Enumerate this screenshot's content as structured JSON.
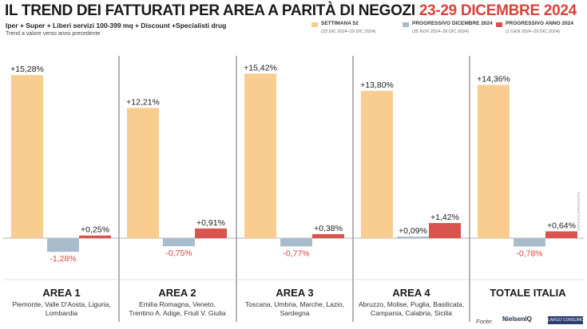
{
  "header": {
    "title_main": "IL TREND DEI FATTURATI PER AREA A PARITÀ DI NEGOZI",
    "title_dates": "23-29 DICEMBRE 2024",
    "subtitle": "Iper + Super + Liberi servizi 100-399 mq + Discount +Specialisti drug",
    "note": "Trend a valore verso anno precedente"
  },
  "legend": [
    {
      "label": "SETTIMANA 52",
      "sub": "(23 DIC 2024–29 DIC 2024)",
      "color": "#f8cd8f"
    },
    {
      "label": "PROGRESSIVO DICEMBRE 2024",
      "sub": "(25 NOV 2024–29 DIC 2024)",
      "color": "#a9bccb"
    },
    {
      "label": "PROGRESSIVO ANNO 2024",
      "sub": "(1 GEN 2024–29 DIC 2024)",
      "color": "#d9534f"
    }
  ],
  "credit": "GRAFICO IMPAGINATO",
  "source": {
    "label": "Fonte:",
    "logo": "NielsenIQ",
    "logo2": "LARGO CONSUMO"
  },
  "chart_data": {
    "type": "bar",
    "categories": [
      "AREA 1",
      "AREA 2",
      "AREA 3",
      "AREA 4",
      "TOTALE ITALIA"
    ],
    "category_regions": [
      [
        "Piemonte, Valle D'Aosta, Liguria,",
        "Lombardia"
      ],
      [
        "Emilia Romagna, Veneto,",
        "Trentino A. Adige, Friuli V. Giulia"
      ],
      [
        "Toscana, Umbria, Marche, Lazio,",
        "Sardegna"
      ],
      [
        "Abruzzo, Molise, Puglia, Basilicata,",
        "Campania, Calabria, Sicilia"
      ],
      []
    ],
    "series": [
      {
        "name": "SETTIMANA 52",
        "values": [
          15.28,
          12.21,
          15.42,
          13.8,
          14.36
        ],
        "labels": [
          "+15,28%",
          "+12,21%",
          "+15,42%",
          "+13,80%",
          "+14,36%"
        ],
        "color": "#f8cd8f"
      },
      {
        "name": "PROGRESSIVO DICEMBRE 2024",
        "values": [
          -1.28,
          -0.75,
          -0.77,
          0.09,
          -0.78
        ],
        "labels": [
          "-1,28%",
          "-0,75%",
          "-0,77%",
          "+0,09%",
          "-0,78%"
        ],
        "color": "#a9bccb"
      },
      {
        "name": "PROGRESSIVO ANNO 2024",
        "values": [
          0.25,
          0.91,
          0.38,
          1.42,
          0.64
        ],
        "labels": [
          "+0,25%",
          "+0,91%",
          "+0,38%",
          "+1,42%",
          "+0,64%"
        ],
        "color": "#d9534f"
      }
    ],
    "positive_label_color": "#1a1a1a",
    "negative_label_color": "#d9423a",
    "ylim": [
      -1.5,
      16
    ]
  }
}
